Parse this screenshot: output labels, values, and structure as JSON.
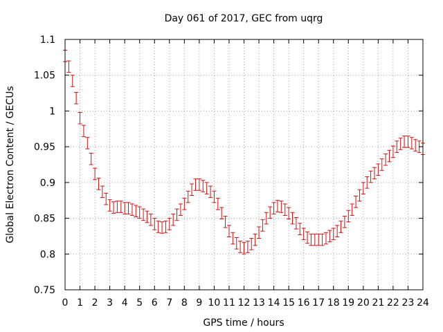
{
  "chart_data": {
    "type": "line",
    "title": "Day 061 of 2017, GEC from uqrg",
    "xlabel": "GPS time / hours",
    "ylabel": "Global Electron Content / GECUs",
    "xlim": [
      0,
      24
    ],
    "ylim": [
      0.75,
      1.1
    ],
    "x_ticks": [
      0,
      1,
      2,
      3,
      4,
      5,
      6,
      7,
      8,
      9,
      10,
      11,
      12,
      13,
      14,
      15,
      16,
      17,
      18,
      19,
      20,
      21,
      22,
      23,
      24
    ],
    "y_ticks": [
      0.75,
      0.8,
      0.85,
      0.9,
      0.95,
      1,
      1.05,
      1.1
    ],
    "y_tick_labels": [
      "0.75",
      "0.8",
      "0.85",
      "0.9",
      "0.95",
      "1",
      "1.05",
      "1.1"
    ],
    "grid": true,
    "series_color": "#cc1111",
    "error": 0.008,
    "x": [
      0,
      0.25,
      0.5,
      0.75,
      1,
      1.25,
      1.5,
      1.75,
      2,
      2.25,
      2.5,
      2.75,
      3,
      3.25,
      3.5,
      3.75,
      4,
      4.25,
      4.5,
      4.75,
      5,
      5.25,
      5.5,
      5.75,
      6,
      6.25,
      6.5,
      6.75,
      7,
      7.25,
      7.5,
      7.75,
      8,
      8.25,
      8.5,
      8.75,
      9,
      9.25,
      9.5,
      9.75,
      10,
      10.25,
      10.5,
      10.75,
      11,
      11.25,
      11.5,
      11.75,
      12,
      12.25,
      12.5,
      12.75,
      13,
      13.25,
      13.5,
      13.75,
      14,
      14.25,
      14.5,
      14.75,
      15,
      15.25,
      15.5,
      15.75,
      16,
      16.25,
      16.5,
      16.75,
      17,
      17.25,
      17.5,
      17.75,
      18,
      18.25,
      18.5,
      18.75,
      19,
      19.25,
      19.5,
      19.75,
      20,
      20.25,
      20.5,
      20.75,
      21,
      21.25,
      21.5,
      21.75,
      22,
      22.25,
      22.5,
      22.75,
      23,
      23.25,
      23.5,
      23.75,
      24
    ],
    "y": [
      1.077,
      1.062,
      1.042,
      1.018,
      0.99,
      0.972,
      0.955,
      0.933,
      0.912,
      0.898,
      0.887,
      0.877,
      0.868,
      0.865,
      0.866,
      0.866,
      0.864,
      0.864,
      0.862,
      0.86,
      0.858,
      0.855,
      0.852,
      0.848,
      0.842,
      0.838,
      0.837,
      0.838,
      0.842,
      0.848,
      0.855,
      0.862,
      0.87,
      0.88,
      0.89,
      0.897,
      0.897,
      0.895,
      0.892,
      0.887,
      0.88,
      0.87,
      0.857,
      0.845,
      0.832,
      0.822,
      0.815,
      0.81,
      0.808,
      0.81,
      0.814,
      0.82,
      0.83,
      0.84,
      0.85,
      0.858,
      0.864,
      0.867,
      0.866,
      0.862,
      0.857,
      0.85,
      0.843,
      0.835,
      0.828,
      0.823,
      0.82,
      0.82,
      0.82,
      0.82,
      0.822,
      0.825,
      0.828,
      0.832,
      0.838,
      0.845,
      0.853,
      0.862,
      0.873,
      0.882,
      0.892,
      0.9,
      0.908,
      0.913,
      0.918,
      0.925,
      0.932,
      0.937,
      0.943,
      0.95,
      0.954,
      0.957,
      0.957,
      0.955,
      0.952,
      0.95,
      0.947
    ]
  }
}
